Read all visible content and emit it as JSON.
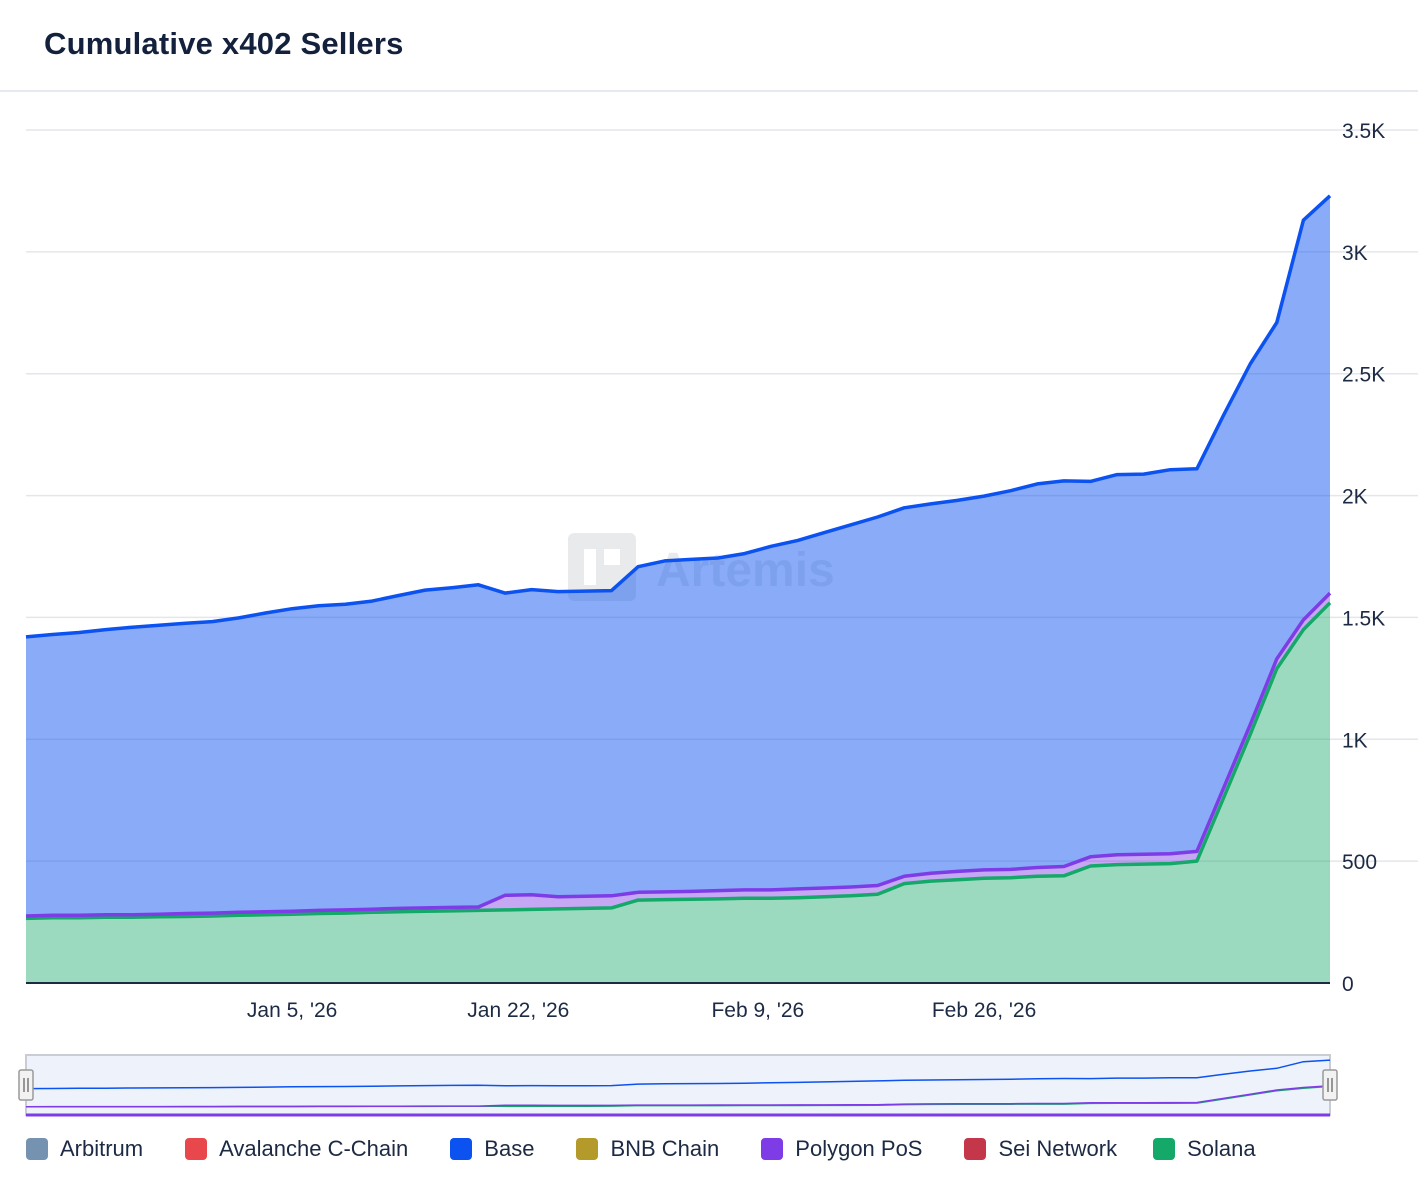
{
  "title": "Cumulative x402 Sellers",
  "watermark": "Artemis",
  "legend": [
    {
      "name": "Arbitrum",
      "color": "#7593b0"
    },
    {
      "name": "Avalanche C-Chain",
      "color": "#e8474c"
    },
    {
      "name": "Base",
      "color": "#0b52f0"
    },
    {
      "name": "BNB Chain",
      "color": "#b39a2a"
    },
    {
      "name": "Polygon PoS",
      "color": "#7e3ce6"
    },
    {
      "name": "Sei Network",
      "color": "#c4374a"
    },
    {
      "name": "Solana",
      "color": "#14a869"
    }
  ],
  "chart_data": {
    "type": "area",
    "stacked": true,
    "title": "Cumulative x402 Sellers",
    "xlabel": "",
    "ylabel": "",
    "ylim": [
      0,
      3500
    ],
    "yticks": [
      0,
      500,
      1000,
      1500,
      2000,
      2500,
      3000,
      3500
    ],
    "ytick_labels": [
      "0",
      "500",
      "1K",
      "1.5K",
      "2K",
      "2.5K",
      "3K",
      "3.5K"
    ],
    "x_start": "2025-12-16",
    "x_end": "2026-03-24",
    "xtick_labels": [
      "Jan 5, '26",
      "Jan 22, '26",
      "Feb 9, '26",
      "Feb 26, '26"
    ],
    "xtick_dates": [
      "2026-01-05",
      "2026-01-22",
      "2026-02-09",
      "2026-02-26"
    ],
    "grid": true,
    "legend_position": "bottom",
    "dates": [
      "2025-12-16",
      "2025-12-18",
      "2025-12-20",
      "2025-12-22",
      "2025-12-24",
      "2025-12-26",
      "2025-12-28",
      "2025-12-30",
      "2026-01-01",
      "2026-01-03",
      "2026-01-05",
      "2026-01-07",
      "2026-01-09",
      "2026-01-11",
      "2026-01-13",
      "2026-01-15",
      "2026-01-17",
      "2026-01-19",
      "2026-01-21",
      "2026-01-23",
      "2026-01-25",
      "2026-01-27",
      "2026-01-29",
      "2026-01-31",
      "2026-02-02",
      "2026-02-04",
      "2026-02-06",
      "2026-02-08",
      "2026-02-10",
      "2026-02-12",
      "2026-02-14",
      "2026-02-16",
      "2026-02-18",
      "2026-02-20",
      "2026-02-22",
      "2026-02-24",
      "2026-02-26",
      "2026-02-28",
      "2026-03-02",
      "2026-03-04",
      "2026-03-06",
      "2026-03-08",
      "2026-03-10",
      "2026-03-12",
      "2026-03-14",
      "2026-03-16",
      "2026-03-18",
      "2026-03-20",
      "2026-03-22",
      "2026-03-24"
    ],
    "series": [
      {
        "name": "Solana",
        "color": "#14a869",
        "values": [
          265,
          268,
          268,
          270,
          270,
          272,
          273,
          275,
          278,
          280,
          282,
          285,
          287,
          290,
          292,
          294,
          296,
          298,
          300,
          302,
          304,
          306,
          308,
          340,
          342,
          344,
          345,
          348,
          348,
          350,
          354,
          358,
          364,
          408,
          418,
          424,
          430,
          432,
          438,
          440,
          480,
          486,
          488,
          490,
          500,
          760,
          1020,
          1290,
          1450,
          1560
        ]
      },
      {
        "name": "Polygon PoS",
        "color": "#7e3ce6",
        "values": [
          10,
          10,
          10,
          10,
          10,
          10,
          12,
          12,
          12,
          12,
          12,
          13,
          13,
          13,
          14,
          14,
          14,
          14,
          60,
          60,
          50,
          50,
          50,
          32,
          32,
          32,
          34,
          34,
          34,
          36,
          36,
          36,
          36,
          30,
          32,
          34,
          34,
          34,
          36,
          38,
          38,
          40,
          40,
          40,
          40,
          40,
          40,
          40,
          40,
          40
        ]
      },
      {
        "name": "Base",
        "color": "#0b52f0",
        "values": [
          1145,
          1152,
          1160,
          1170,
          1180,
          1186,
          1191,
          1196,
          1208,
          1226,
          1242,
          1250,
          1254,
          1264,
          1284,
          1304,
          1312,
          1322,
          1240,
          1252,
          1252,
          1252,
          1252,
          1336,
          1358,
          1362,
          1365,
          1380,
          1410,
          1430,
          1458,
          1486,
          1512,
          1512,
          1516,
          1522,
          1534,
          1554,
          1574,
          1582,
          1540,
          1560,
          1560,
          1576,
          1570,
          1530,
          1480,
          1380,
          1640,
          1630
        ]
      }
    ]
  }
}
